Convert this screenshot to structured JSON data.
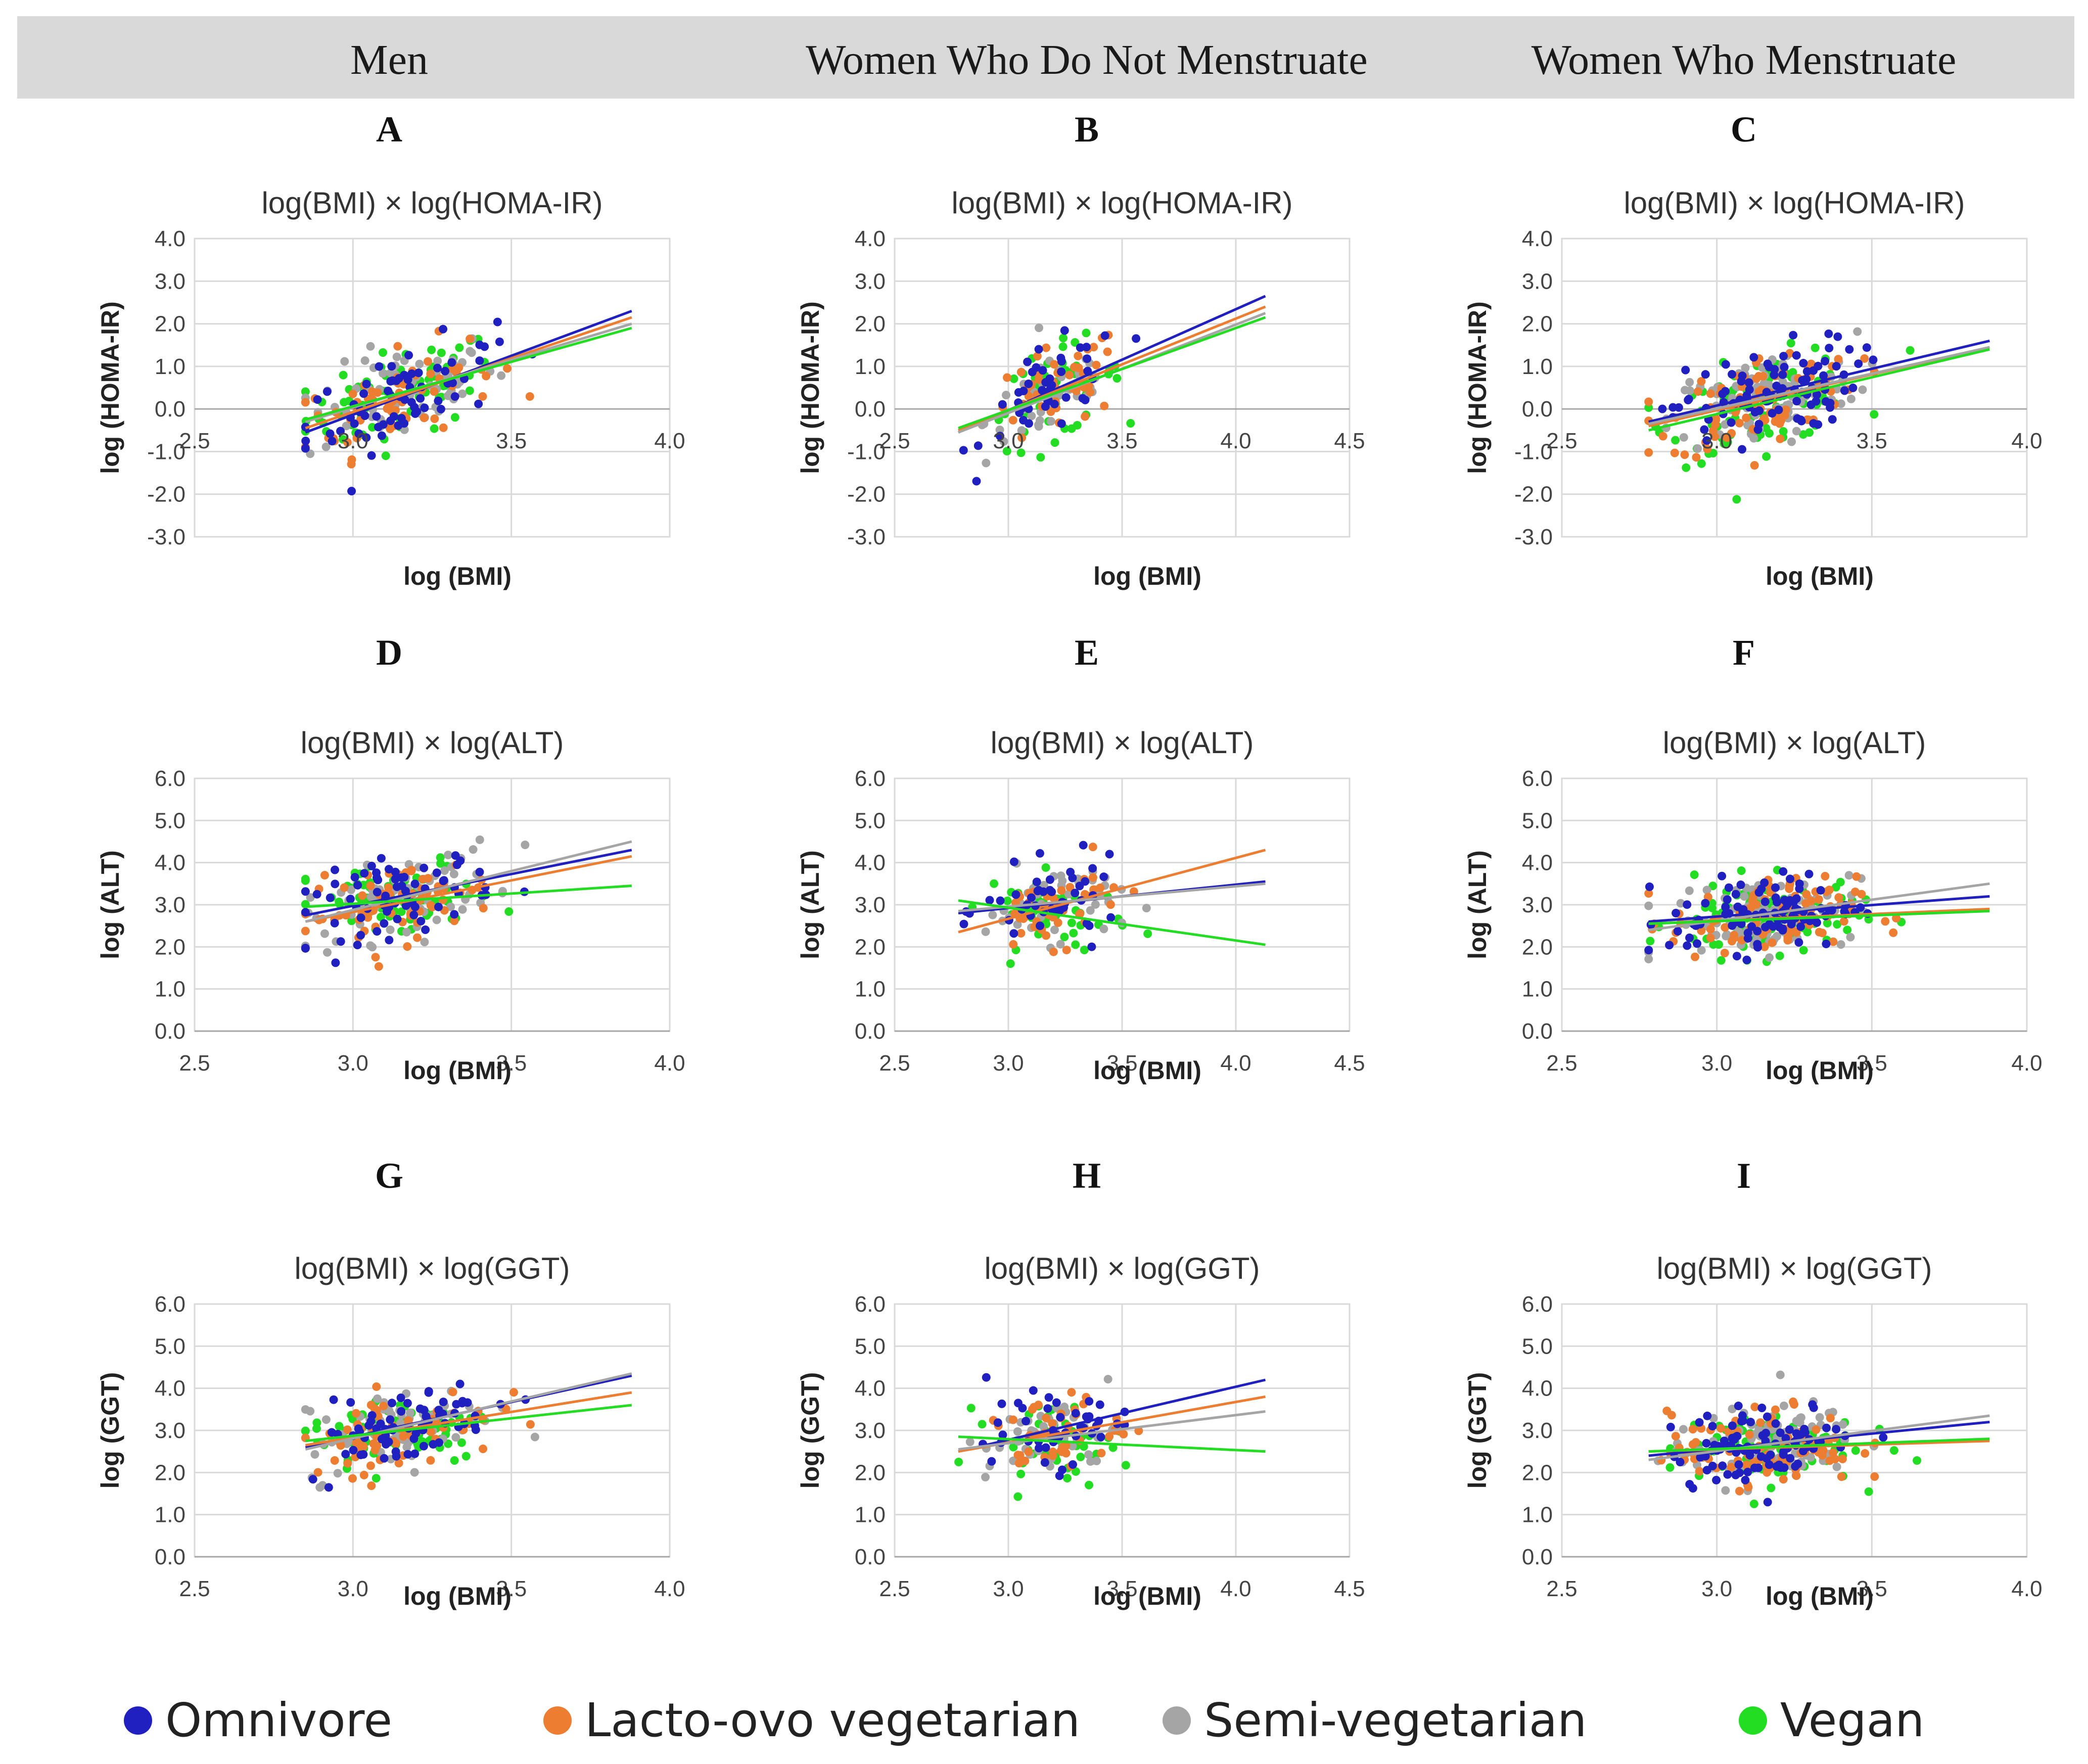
{
  "header": {
    "columns": [
      "Men",
      "Women Who Do Not Menstruate",
      "Women Who Menstruate"
    ]
  },
  "legend": [
    {
      "name": "Omnivore",
      "color": "#2020c0"
    },
    {
      "name": "Lacto-ovo vegetarian",
      "color": "#ed7d31"
    },
    {
      "name": "Semi-vegetarian",
      "color": "#a5a5a5"
    },
    {
      "name": "Vegan",
      "color": "#22dd22"
    }
  ],
  "chart_data": [
    {
      "panel": "A",
      "type": "scatter",
      "title": "log(BMI) × log(HOMA-IR)",
      "xlabel": "log (BMI)",
      "ylabel": "log (HOMA-IR)",
      "xlim": [
        2.5,
        4.0
      ],
      "ylim": [
        -3.0,
        4.0
      ],
      "xticks": [
        "2.5",
        "3.0",
        "3.5",
        "4.0"
      ],
      "yticks": [
        "4.0",
        "3.0",
        "2.0",
        "1.0",
        "0.0",
        "-1.0",
        "-2.0",
        "-3.0"
      ],
      "x_axis_at_zero": true,
      "trendlines": [
        {
          "series": "Omnivore",
          "x": [
            2.85,
            3.88
          ],
          "y": [
            -0.55,
            2.3
          ]
        },
        {
          "series": "Lacto-ovo vegetarian",
          "x": [
            2.85,
            3.88
          ],
          "y": [
            -0.45,
            2.15
          ]
        },
        {
          "series": "Semi-vegetarian",
          "x": [
            2.85,
            3.88
          ],
          "y": [
            -0.3,
            2.0
          ]
        },
        {
          "series": "Vegan",
          "x": [
            2.85,
            3.88
          ],
          "y": [
            -0.25,
            1.9
          ]
        }
      ]
    },
    {
      "panel": "B",
      "type": "scatter",
      "title": "log(BMI) × log(HOMA-IR)",
      "xlabel": "log (BMI)",
      "ylabel": "log (HOMA-IR)",
      "xlim": [
        2.5,
        4.5
      ],
      "ylim": [
        -3.0,
        4.0
      ],
      "xticks": [
        "2.5",
        "3.0",
        "3.5",
        "4.0",
        "4.5"
      ],
      "yticks": [
        "4.0",
        "3.0",
        "2.0",
        "1.0",
        "0.0",
        "-1.0",
        "-2.0",
        "-3.0"
      ],
      "x_axis_at_zero": true,
      "trendlines": [
        {
          "series": "Omnivore",
          "x": [
            2.78,
            4.13
          ],
          "y": [
            -0.55,
            2.65
          ]
        },
        {
          "series": "Lacto-ovo vegetarian",
          "x": [
            2.78,
            4.13
          ],
          "y": [
            -0.5,
            2.4
          ]
        },
        {
          "series": "Semi-vegetarian",
          "x": [
            2.78,
            4.13
          ],
          "y": [
            -0.55,
            2.25
          ]
        },
        {
          "series": "Vegan",
          "x": [
            2.78,
            4.13
          ],
          "y": [
            -0.45,
            2.15
          ]
        }
      ]
    },
    {
      "panel": "C",
      "type": "scatter",
      "title": "log(BMI) × log(HOMA-IR)",
      "xlabel": "log (BMI)",
      "ylabel": "log (HOMA-IR)",
      "xlim": [
        2.5,
        4.0
      ],
      "ylim": [
        -3.0,
        4.0
      ],
      "xticks": [
        "2.5",
        "3.0",
        "3.5",
        "4.0"
      ],
      "yticks": [
        "4.0",
        "3.0",
        "2.0",
        "1.0",
        "0.0",
        "-1.0",
        "-2.0",
        "-3.0"
      ],
      "x_axis_at_zero": true,
      "trendlines": [
        {
          "series": "Omnivore",
          "x": [
            2.78,
            3.88
          ],
          "y": [
            -0.3,
            1.6
          ]
        },
        {
          "series": "Lacto-ovo vegetarian",
          "x": [
            2.78,
            3.88
          ],
          "y": [
            -0.4,
            1.45
          ]
        },
        {
          "series": "Semi-vegetarian",
          "x": [
            2.78,
            3.88
          ],
          "y": [
            -0.35,
            1.45
          ]
        },
        {
          "series": "Vegan",
          "x": [
            2.78,
            3.88
          ],
          "y": [
            -0.5,
            1.4
          ]
        }
      ]
    },
    {
      "panel": "D",
      "type": "scatter",
      "title": "log(BMI) × log(ALT)",
      "xlabel": "log (BMI)",
      "ylabel": "log (ALT)",
      "xlim": [
        2.5,
        4.0
      ],
      "ylim": [
        0.0,
        6.0
      ],
      "xticks": [
        "2.5",
        "3.0",
        "3.5",
        "4.0"
      ],
      "yticks": [
        "6.0",
        "5.0",
        "4.0",
        "3.0",
        "2.0",
        "1.0",
        "0.0"
      ],
      "x_axis_at_zero": false,
      "trendlines": [
        {
          "series": "Omnivore",
          "x": [
            2.85,
            3.88
          ],
          "y": [
            2.75,
            4.3
          ]
        },
        {
          "series": "Lacto-ovo vegetarian",
          "x": [
            2.85,
            3.88
          ],
          "y": [
            2.6,
            4.15
          ]
        },
        {
          "series": "Semi-vegetarian",
          "x": [
            2.85,
            3.88
          ],
          "y": [
            2.6,
            4.5
          ]
        },
        {
          "series": "Vegan",
          "x": [
            2.85,
            3.88
          ],
          "y": [
            2.95,
            3.45
          ]
        }
      ]
    },
    {
      "panel": "E",
      "type": "scatter",
      "title": "log(BMI) × log(ALT)",
      "xlabel": "log (BMI)",
      "ylabel": "log (ALT)",
      "xlim": [
        2.5,
        4.5
      ],
      "ylim": [
        0.0,
        6.0
      ],
      "xticks": [
        "2.5",
        "3.0",
        "3.5",
        "4.0",
        "4.5"
      ],
      "yticks": [
        "6.0",
        "5.0",
        "4.0",
        "3.0",
        "2.0",
        "1.0",
        "0.0"
      ],
      "x_axis_at_zero": false,
      "trendlines": [
        {
          "series": "Omnivore",
          "x": [
            2.78,
            4.13
          ],
          "y": [
            2.8,
            3.55
          ]
        },
        {
          "series": "Lacto-ovo vegetarian",
          "x": [
            2.78,
            4.13
          ],
          "y": [
            2.35,
            4.3
          ]
        },
        {
          "series": "Semi-vegetarian",
          "x": [
            2.78,
            4.13
          ],
          "y": [
            2.85,
            3.5
          ]
        },
        {
          "series": "Vegan",
          "x": [
            2.78,
            4.13
          ],
          "y": [
            3.1,
            2.05
          ]
        }
      ]
    },
    {
      "panel": "F",
      "type": "scatter",
      "title": "log(BMI) × log(ALT)",
      "xlabel": "log (BMI)",
      "ylabel": "log (ALT)",
      "xlim": [
        2.5,
        4.0
      ],
      "ylim": [
        0.0,
        6.0
      ],
      "xticks": [
        "2.5",
        "3.0",
        "3.5",
        "4.0"
      ],
      "yticks": [
        "6.0",
        "5.0",
        "4.0",
        "3.0",
        "2.0",
        "1.0",
        "0.0"
      ],
      "x_axis_at_zero": false,
      "trendlines": [
        {
          "series": "Omnivore",
          "x": [
            2.78,
            3.88
          ],
          "y": [
            2.6,
            3.2
          ]
        },
        {
          "series": "Lacto-ovo vegetarian",
          "x": [
            2.78,
            3.88
          ],
          "y": [
            2.55,
            2.9
          ]
        },
        {
          "series": "Semi-vegetarian",
          "x": [
            2.78,
            3.88
          ],
          "y": [
            2.4,
            3.5
          ]
        },
        {
          "series": "Vegan",
          "x": [
            2.78,
            3.88
          ],
          "y": [
            2.55,
            2.85
          ]
        }
      ]
    },
    {
      "panel": "G",
      "type": "scatter",
      "title": "log(BMI) × log(GGT)",
      "xlabel": "log (BMI)",
      "ylabel": "log (GGT)",
      "xlim": [
        2.5,
        4.0
      ],
      "ylim": [
        0.0,
        6.0
      ],
      "xticks": [
        "2.5",
        "3.0",
        "3.5",
        "4.0"
      ],
      "yticks": [
        "6.0",
        "5.0",
        "4.0",
        "3.0",
        "2.0",
        "1.0",
        "0.0"
      ],
      "x_axis_at_zero": false,
      "trendlines": [
        {
          "series": "Omnivore",
          "x": [
            2.85,
            3.88
          ],
          "y": [
            2.6,
            4.3
          ]
        },
        {
          "series": "Lacto-ovo vegetarian",
          "x": [
            2.85,
            3.88
          ],
          "y": [
            2.65,
            3.9
          ]
        },
        {
          "series": "Semi-vegetarian",
          "x": [
            2.85,
            3.88
          ],
          "y": [
            2.55,
            4.35
          ]
        },
        {
          "series": "Vegan",
          "x": [
            2.85,
            3.88
          ],
          "y": [
            2.75,
            3.6
          ]
        }
      ]
    },
    {
      "panel": "H",
      "type": "scatter",
      "title": "log(BMI) × log(GGT)",
      "xlabel": "log (BMI)",
      "ylabel": "log (GGT)",
      "xlim": [
        2.5,
        4.5
      ],
      "ylim": [
        0.0,
        6.0
      ],
      "xticks": [
        "2.5",
        "3.0",
        "3.5",
        "4.0",
        "4.5"
      ],
      "yticks": [
        "6.0",
        "5.0",
        "4.0",
        "3.0",
        "2.0",
        "1.0",
        "0.0"
      ],
      "x_axis_at_zero": false,
      "trendlines": [
        {
          "series": "Omnivore",
          "x": [
            2.78,
            4.13
          ],
          "y": [
            2.5,
            4.2
          ]
        },
        {
          "series": "Lacto-ovo vegetarian",
          "x": [
            2.78,
            4.13
          ],
          "y": [
            2.5,
            3.8
          ]
        },
        {
          "series": "Semi-vegetarian",
          "x": [
            2.78,
            4.13
          ],
          "y": [
            2.55,
            3.45
          ]
        },
        {
          "series": "Vegan",
          "x": [
            2.78,
            4.13
          ],
          "y": [
            2.85,
            2.5
          ]
        }
      ]
    },
    {
      "panel": "I",
      "type": "scatter",
      "title": "log(BMI) × log(GGT)",
      "xlabel": "log (BMI)",
      "ylabel": "log (GGT)",
      "xlim": [
        2.5,
        4.0
      ],
      "ylim": [
        0.0,
        6.0
      ],
      "xticks": [
        "2.5",
        "3.0",
        "3.5",
        "4.0"
      ],
      "yticks": [
        "6.0",
        "5.0",
        "4.0",
        "3.0",
        "2.0",
        "1.0",
        "0.0"
      ],
      "x_axis_at_zero": false,
      "trendlines": [
        {
          "series": "Omnivore",
          "x": [
            2.78,
            3.88
          ],
          "y": [
            2.4,
            3.2
          ]
        },
        {
          "series": "Lacto-ovo vegetarian",
          "x": [
            2.78,
            3.88
          ],
          "y": [
            2.5,
            2.75
          ]
        },
        {
          "series": "Semi-vegetarian",
          "x": [
            2.78,
            3.88
          ],
          "y": [
            2.3,
            3.35
          ]
        },
        {
          "series": "Vegan",
          "x": [
            2.78,
            3.88
          ],
          "y": [
            2.5,
            2.8
          ]
        }
      ]
    }
  ]
}
